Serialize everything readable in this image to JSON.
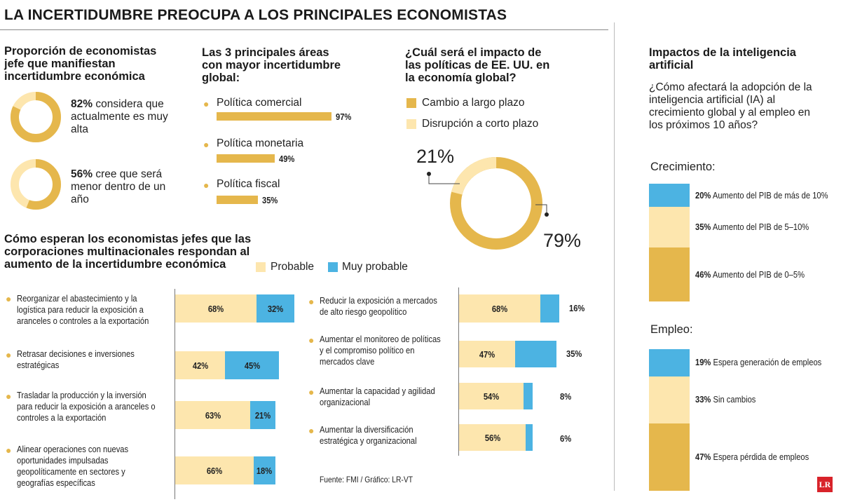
{
  "title": "LA INCERTIDUMBRE PREOCUPA A LOS PRINCIPALES ECONOMISTAS",
  "colors": {
    "dark": "#e5b74c",
    "light": "#fde6ae",
    "blue": "#4cb3e2"
  },
  "s1": {
    "heading": "Proporción de economistas jefe que manifiestan incertidumbre económica",
    "items": [
      {
        "pct": "82%",
        "text": "considera que actualmente es muy alta"
      },
      {
        "pct": "56%",
        "text": "cree que será menor dentro de un año"
      }
    ]
  },
  "s2": {
    "heading": "Las 3 principales áreas con mayor incertidumbre global:",
    "items": [
      {
        "label": "Política comercial",
        "value": 97,
        "display": "97%"
      },
      {
        "label": "Política monetaria",
        "value": 49,
        "display": "49%"
      },
      {
        "label": "Política fiscal",
        "value": 35,
        "display": "35%"
      }
    ]
  },
  "s3": {
    "heading": "¿Cuál será el impacto de las políticas de EE. UU. en la economía global?",
    "legend": [
      "Cambio a largo plazo",
      "Disrupción a corto plazo"
    ],
    "values": [
      79,
      21
    ],
    "labels": [
      "79%",
      "21%"
    ]
  },
  "s4": {
    "heading": "Cómo esperan los economistas jefes que las corporaciones multinacionales respondan al aumento de la incertidumbre económica",
    "legend": [
      "Probable",
      "Muy probable"
    ],
    "left": [
      {
        "text": "Reorganizar el abastecimiento y la logística para reducir la exposición a aranceles o controles a la exportación",
        "probable": 68,
        "muy": 32,
        "pl": "68%",
        "ml": "32%"
      },
      {
        "text": "Retrasar decisiones e inversiones estratégicas",
        "probable": 42,
        "muy": 45,
        "pl": "42%",
        "ml": "45%"
      },
      {
        "text": "Trasladar la producción y la inversión para reducir la exposición a aranceles o controles a la exportación",
        "probable": 63,
        "muy": 21,
        "pl": "63%",
        "ml": "21%"
      },
      {
        "text": "Alinear operaciones con nuevas oportunidades impulsadas geopolíticamente en sectores y geografías específicas",
        "probable": 66,
        "muy": 18,
        "pl": "66%",
        "ml": "18%"
      }
    ],
    "right": [
      {
        "text": "Reducir la exposición a mercados de alto riesgo geopolítico",
        "probable": 68,
        "muy": 16,
        "pl": "68%",
        "ml": "16%"
      },
      {
        "text": "Aumentar el monitoreo de políticas y el compromiso político en mercados clave",
        "probable": 47,
        "muy": 35,
        "pl": "47%",
        "ml": "35%"
      },
      {
        "text": "Aumentar la capacidad y agilidad organizacional",
        "probable": 54,
        "muy": 8,
        "pl": "54%",
        "ml": "8%"
      },
      {
        "text": "Aumentar la diversificación estratégica y organizacional",
        "probable": 56,
        "muy": 6,
        "pl": "56%",
        "ml": "6%"
      }
    ],
    "source": "Fuente: FMI  / Gráfico: LR-VT"
  },
  "s5": {
    "heading": "Impactos de la inteligencia artificial",
    "question": "¿Cómo afectará la adopción de la inteligencia artificial (IA) al crecimiento global y al empleo en los próximos 10 años?",
    "growth": {
      "label": "Crecimiento:",
      "segments": [
        {
          "value": 20,
          "pct": "20%",
          "text": "Aumento del PIB de más de 10%",
          "color": "blue"
        },
        {
          "value": 35,
          "pct": "35%",
          "text": "Aumento del PIB de 5–10%",
          "color": "light"
        },
        {
          "value": 46,
          "pct": "46%",
          "text": "Aumento del PIB de 0–5%",
          "color": "dark"
        }
      ]
    },
    "employment": {
      "label": "Empleo:",
      "segments": [
        {
          "value": 19,
          "pct": "19%",
          "text": "Espera generación de empleos",
          "color": "blue"
        },
        {
          "value": 33,
          "pct": "33%",
          "text": "Sin cambios",
          "color": "light"
        },
        {
          "value": 47,
          "pct": "47%",
          "text": "Espera pérdida de empleos",
          "color": "dark"
        }
      ]
    }
  },
  "logo": "LR",
  "chart_data": [
    {
      "type": "pie",
      "title": "Proporción de economistas jefe que manifiestan incertidumbre económica",
      "categories": [
        "considera que actualmente es muy alta"
      ],
      "values": [
        82
      ]
    },
    {
      "type": "pie",
      "categories": [
        "cree que será menor dentro de un año"
      ],
      "values": [
        56
      ]
    },
    {
      "type": "bar",
      "title": "Las 3 principales áreas con mayor incertidumbre global:",
      "categories": [
        "Política comercial",
        "Política monetaria",
        "Política fiscal"
      ],
      "values": [
        97,
        49,
        35
      ]
    },
    {
      "type": "pie",
      "title": "¿Cuál será el impacto de las políticas de EE. UU. en la economía global?",
      "categories": [
        "Cambio a largo plazo",
        "Disrupción a corto plazo"
      ],
      "values": [
        79,
        21
      ]
    },
    {
      "type": "bar",
      "title": "Cómo esperan los economistas jefes que las corporaciones multinacionales respondan al aumento de la incertidumbre económica",
      "categories": [
        "Reorganizar el abastecimiento y la logística para reducir la exposición a aranceles o controles a la exportación",
        "Retrasar decisiones e inversiones estratégicas",
        "Trasladar la producción y la inversión para reducir la exposición a aranceles o controles a la exportación",
        "Alinear operaciones con nuevas oportunidades impulsadas geopolíticamente en sectores y geografías específicas",
        "Reducir la exposición a mercados de alto riesgo geopolítico",
        "Aumentar el monitoreo de políticas y el compromiso político en mercados clave",
        "Aumentar la capacidad y agilidad organizacional",
        "Aumentar la diversificación estratégica y organizacional"
      ],
      "series": [
        {
          "name": "Probable",
          "values": [
            68,
            42,
            63,
            66,
            68,
            47,
            54,
            56
          ]
        },
        {
          "name": "Muy probable",
          "values": [
            32,
            45,
            21,
            18,
            16,
            35,
            8,
            6
          ]
        }
      ]
    },
    {
      "type": "bar",
      "title": "Crecimiento:",
      "categories": [
        "Aumento del PIB de más de 10%",
        "Aumento del PIB de 5–10%",
        "Aumento del PIB de 0–5%"
      ],
      "values": [
        20,
        35,
        46
      ]
    },
    {
      "type": "bar",
      "title": "Empleo:",
      "categories": [
        "Espera generación de empleos",
        "Sin cambios",
        "Espera pérdida de empleos"
      ],
      "values": [
        19,
        33,
        47
      ]
    }
  ]
}
